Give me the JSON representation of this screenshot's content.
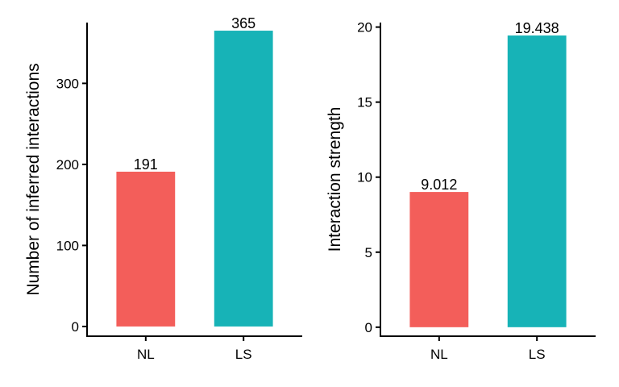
{
  "chart_data": [
    {
      "type": "bar",
      "categories": [
        "NL",
        "LS"
      ],
      "values": [
        191,
        365
      ],
      "value_labels": [
        "191",
        "365"
      ],
      "colors": [
        "#F35E5A",
        "#17B3B7"
      ],
      "xlabel": "",
      "ylabel": "Number of inferred interactions",
      "ylim": [
        -12,
        375
      ],
      "yticks": [
        0,
        100,
        200,
        300
      ],
      "ytick_labels": [
        "0",
        "100",
        "200",
        "300"
      ],
      "grid": false,
      "legend": "none"
    },
    {
      "type": "bar",
      "categories": [
        "NL",
        "LS"
      ],
      "values": [
        9.012,
        19.438
      ],
      "value_labels": [
        "9.012",
        "19.438"
      ],
      "colors": [
        "#F35E5A",
        "#17B3B7"
      ],
      "xlabel": "",
      "ylabel": "Interaction strength",
      "ylim": [
        -0.6,
        20.3
      ],
      "yticks": [
        0,
        5,
        10,
        15,
        20
      ],
      "ytick_labels": [
        "0",
        "5",
        "10",
        "15",
        "20"
      ],
      "grid": false,
      "legend": "none"
    }
  ]
}
